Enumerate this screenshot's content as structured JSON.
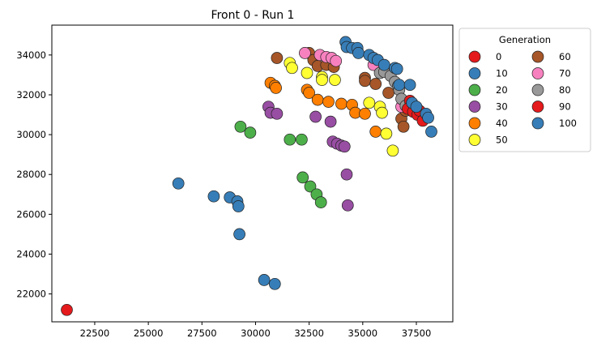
{
  "chart_data": {
    "type": "scatter",
    "title": "Front 0 - Run 1",
    "xlabel": "",
    "ylabel": "",
    "xlim": [
      20500,
      39200
    ],
    "ylim": [
      20600,
      35500
    ],
    "x_ticks": [
      22500,
      25000,
      27500,
      30000,
      32500,
      35000,
      37500
    ],
    "y_ticks": [
      22000,
      24000,
      26000,
      28000,
      30000,
      32000,
      34000
    ],
    "grid": false,
    "legend": {
      "title": "Generation",
      "placement": "outside-right",
      "columns": 2
    },
    "series": [
      {
        "name": "0",
        "color": "#e41a1c",
        "points": [
          [
            21200,
            21200
          ]
        ]
      },
      {
        "name": "10",
        "color": "#377eb8",
        "points": [
          [
            26400,
            27550
          ],
          [
            28050,
            26900
          ],
          [
            28800,
            26850
          ],
          [
            29150,
            26650
          ],
          [
            29200,
            26400
          ],
          [
            29250,
            25000
          ],
          [
            30400,
            22700
          ],
          [
            30900,
            22500
          ]
        ]
      },
      {
        "name": "20",
        "color": "#4daf4a",
        "points": [
          [
            29300,
            30400
          ],
          [
            29750,
            30100
          ],
          [
            31600,
            29750
          ],
          [
            32150,
            29750
          ],
          [
            32200,
            27850
          ],
          [
            32550,
            27400
          ],
          [
            32850,
            27000
          ],
          [
            33050,
            26600
          ]
        ]
      },
      {
        "name": "30",
        "color": "#984ea3",
        "points": [
          [
            30600,
            31400
          ],
          [
            30700,
            31100
          ],
          [
            31000,
            31050
          ],
          [
            32800,
            30900
          ],
          [
            33500,
            30650
          ],
          [
            33600,
            29650
          ],
          [
            33800,
            29550
          ],
          [
            34000,
            29450
          ],
          [
            34150,
            29400
          ],
          [
            34250,
            28000
          ],
          [
            34300,
            26450
          ]
        ]
      },
      {
        "name": "40",
        "color": "#ff7f00",
        "points": [
          [
            30700,
            32600
          ],
          [
            30900,
            32450
          ],
          [
            30950,
            32350
          ],
          [
            32400,
            32250
          ],
          [
            32500,
            32100
          ],
          [
            32900,
            31750
          ],
          [
            33400,
            31650
          ],
          [
            34000,
            31550
          ],
          [
            34500,
            31500
          ],
          [
            34650,
            31100
          ],
          [
            35100,
            31050
          ],
          [
            35600,
            30150
          ]
        ]
      },
      {
        "name": "50",
        "color": "#ffff33",
        "points": [
          [
            31600,
            33600
          ],
          [
            31700,
            33350
          ],
          [
            32400,
            33100
          ],
          [
            33100,
            32900
          ],
          [
            33100,
            32750
          ],
          [
            33700,
            32750
          ],
          [
            35300,
            31600
          ],
          [
            35800,
            31400
          ],
          [
            35900,
            31100
          ],
          [
            36100,
            30050
          ],
          [
            36400,
            29200
          ]
        ]
      },
      {
        "name": "60",
        "color": "#a65628",
        "points": [
          [
            31000,
            33850
          ],
          [
            32500,
            34100
          ],
          [
            32700,
            33750
          ],
          [
            32900,
            33450
          ],
          [
            33300,
            33500
          ],
          [
            33650,
            33400
          ],
          [
            35100,
            32850
          ],
          [
            35100,
            32700
          ],
          [
            35600,
            32550
          ],
          [
            36200,
            32100
          ],
          [
            36800,
            30800
          ],
          [
            36900,
            30400
          ],
          [
            37000,
            31200
          ]
        ]
      },
      {
        "name": "70",
        "color": "#f781bf",
        "points": [
          [
            32300,
            34100
          ],
          [
            33000,
            34000
          ],
          [
            33300,
            33900
          ],
          [
            33550,
            33850
          ],
          [
            33750,
            33700
          ],
          [
            35500,
            33500
          ],
          [
            36800,
            31400
          ]
        ]
      },
      {
        "name": "80",
        "color": "#999999",
        "points": [
          [
            35800,
            33100
          ],
          [
            36000,
            33150
          ],
          [
            36300,
            32950
          ],
          [
            36500,
            32650
          ],
          [
            36650,
            32450
          ],
          [
            36700,
            32250
          ],
          [
            36800,
            31800
          ],
          [
            37000,
            31450
          ]
        ]
      },
      {
        "name": "90",
        "color": "#e41a1c",
        "points": [
          [
            37200,
            31700
          ],
          [
            37300,
            31550
          ],
          [
            37100,
            31300
          ],
          [
            37350,
            31150
          ],
          [
            37550,
            31000
          ],
          [
            37650,
            31200
          ],
          [
            37800,
            30700
          ]
        ]
      },
      {
        "name": "100",
        "color": "#377eb8",
        "points": [
          [
            34200,
            34650
          ],
          [
            34250,
            34400
          ],
          [
            34500,
            34350
          ],
          [
            34750,
            34350
          ],
          [
            34800,
            34100
          ],
          [
            35300,
            34000
          ],
          [
            35500,
            33850
          ],
          [
            35700,
            33750
          ],
          [
            36000,
            33500
          ],
          [
            36500,
            33350
          ],
          [
            36600,
            33300
          ],
          [
            36700,
            32500
          ],
          [
            37200,
            32500
          ],
          [
            37300,
            31600
          ],
          [
            37500,
            31400
          ],
          [
            37950,
            31050
          ],
          [
            38050,
            30850
          ],
          [
            38200,
            30150
          ]
        ]
      }
    ]
  }
}
